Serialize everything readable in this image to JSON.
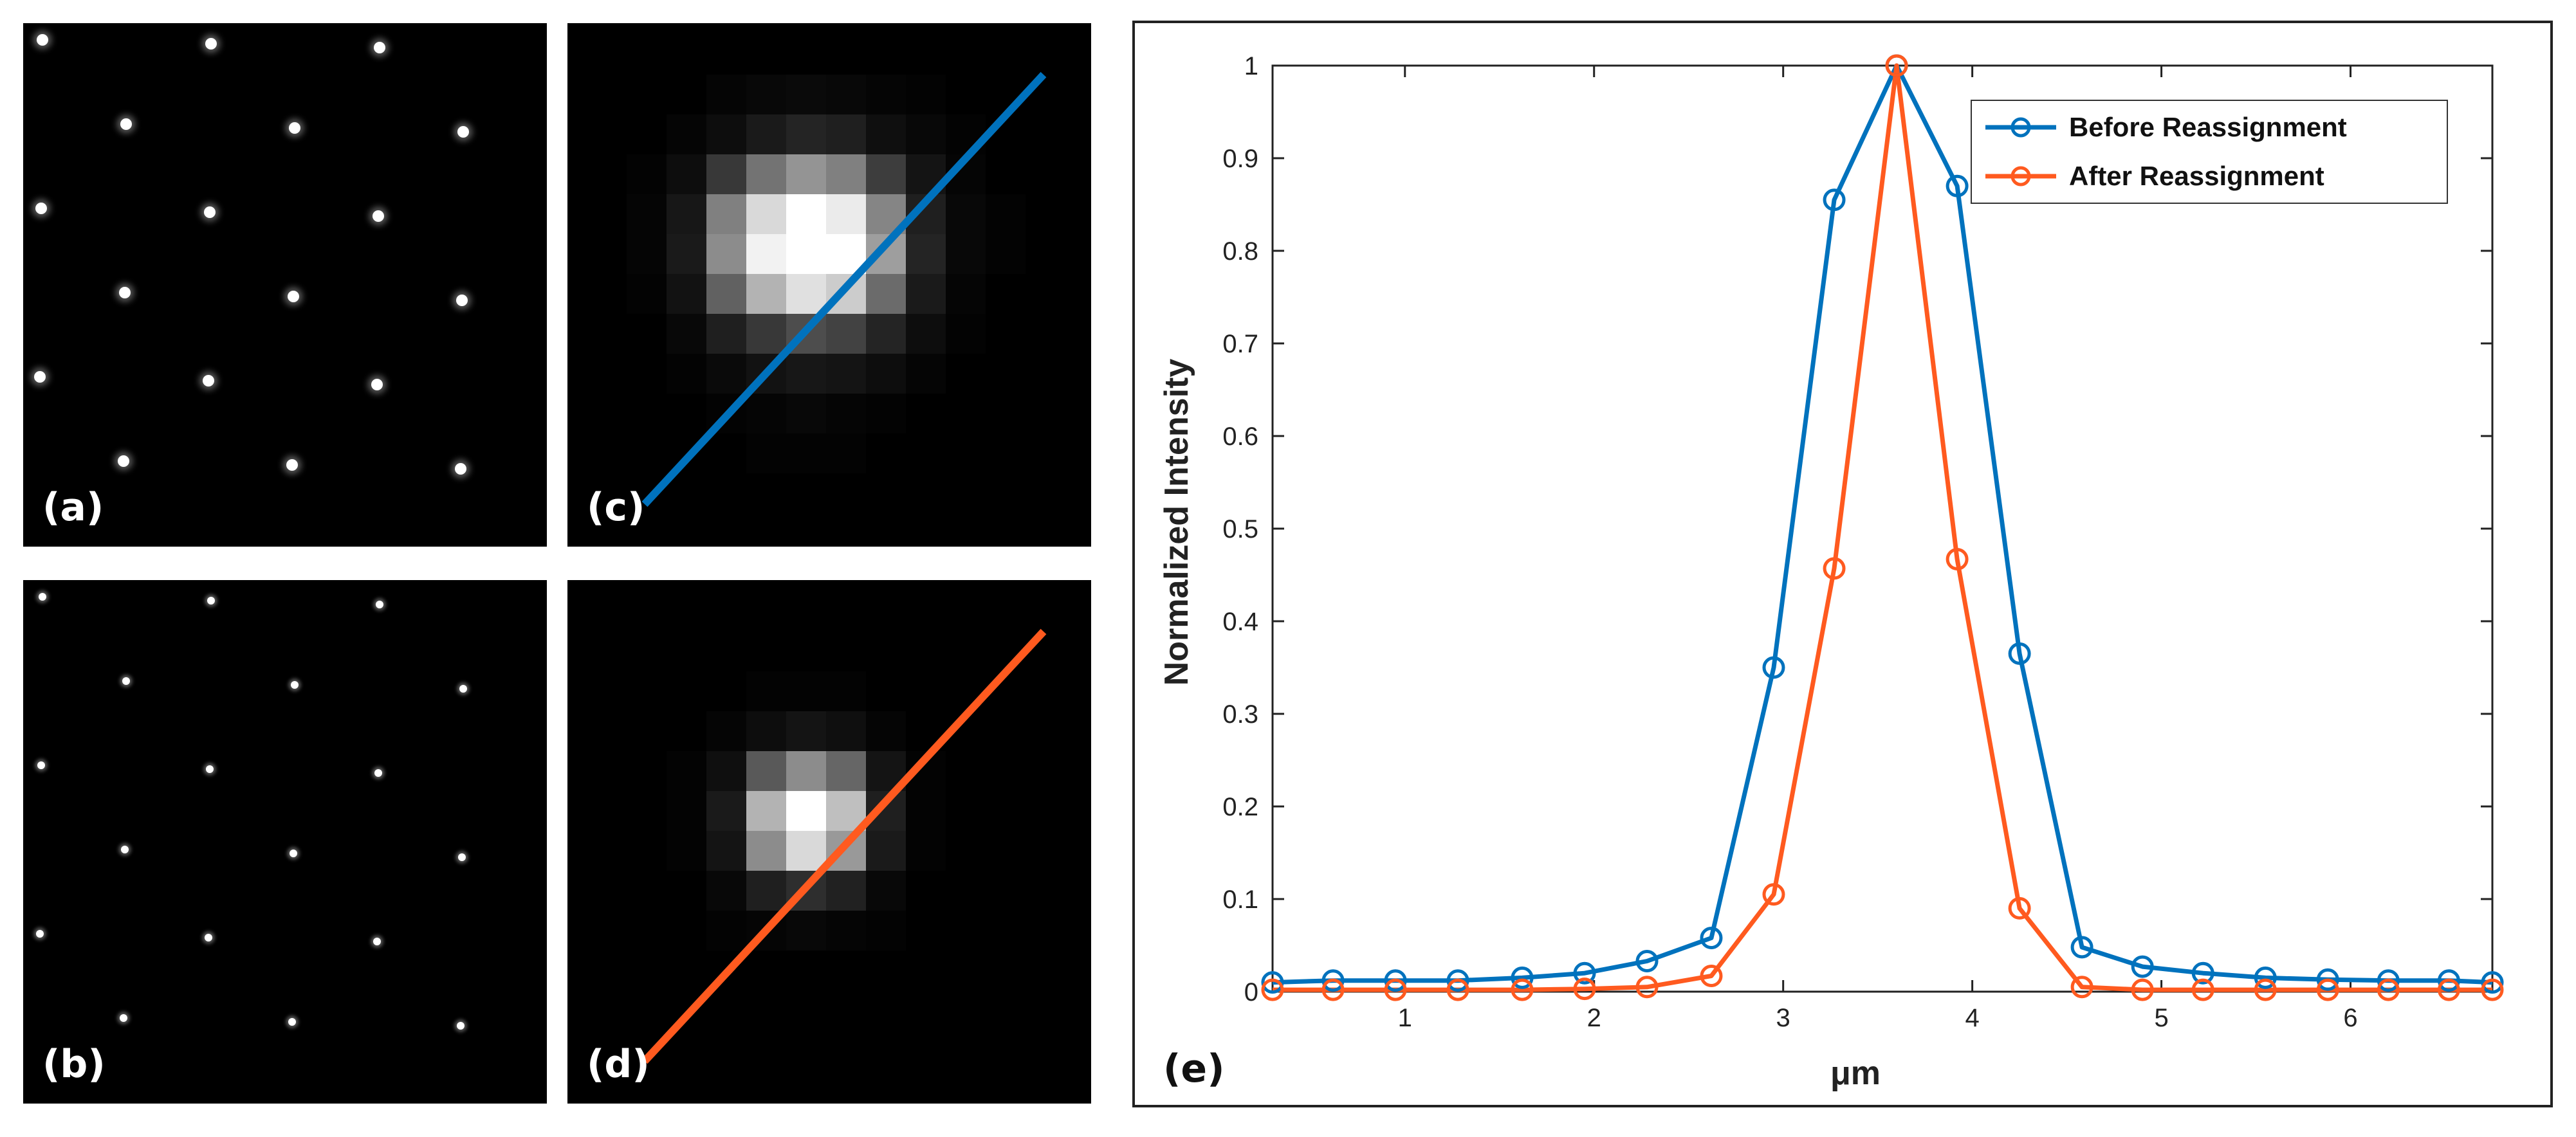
{
  "panels": {
    "a": {
      "label": "(a)"
    },
    "b": {
      "label": "(b)"
    },
    "c": {
      "label": "(c)"
    },
    "d": {
      "label": "(d)"
    },
    "e": {
      "label": "(e)"
    }
  },
  "colors": {
    "before": "#0072BD",
    "after": "#FF5A1F",
    "axis": "#222222",
    "background": "#000000"
  },
  "spot_grid": {
    "rows": 6,
    "cols": 3,
    "row_offsets": [
      0,
      1,
      0,
      1,
      0,
      1
    ]
  },
  "psf_before": [
    [
      0.0,
      0.0,
      0.02,
      0.03,
      0.04,
      0.03,
      0.02,
      0.01,
      0.0,
      0.0
    ],
    [
      0.0,
      0.02,
      0.05,
      0.1,
      0.14,
      0.12,
      0.06,
      0.03,
      0.01,
      0.0
    ],
    [
      0.01,
      0.05,
      0.22,
      0.45,
      0.58,
      0.5,
      0.24,
      0.08,
      0.02,
      0.0
    ],
    [
      0.02,
      0.09,
      0.5,
      0.85,
      1.0,
      0.92,
      0.52,
      0.12,
      0.03,
      0.01
    ],
    [
      0.02,
      0.1,
      0.55,
      0.95,
      1.0,
      1.0,
      0.62,
      0.14,
      0.03,
      0.01
    ],
    [
      0.01,
      0.07,
      0.38,
      0.7,
      0.88,
      0.8,
      0.42,
      0.1,
      0.02,
      0.0
    ],
    [
      0.0,
      0.03,
      0.12,
      0.22,
      0.3,
      0.26,
      0.14,
      0.05,
      0.01,
      0.0
    ],
    [
      0.0,
      0.01,
      0.04,
      0.07,
      0.09,
      0.08,
      0.05,
      0.02,
      0.0,
      0.0
    ],
    [
      0.0,
      0.0,
      0.01,
      0.02,
      0.03,
      0.02,
      0.01,
      0.0,
      0.0,
      0.0
    ],
    [
      0.0,
      0.0,
      0.0,
      0.01,
      0.01,
      0.01,
      0.0,
      0.0,
      0.0,
      0.0
    ]
  ],
  "psf_after": [
    [
      0.0,
      0.0,
      0.0,
      0.0,
      0.0,
      0.0,
      0.0,
      0.0,
      0.0,
      0.0
    ],
    [
      0.0,
      0.0,
      0.0,
      0.01,
      0.01,
      0.01,
      0.0,
      0.0,
      0.0,
      0.0
    ],
    [
      0.0,
      0.0,
      0.02,
      0.05,
      0.08,
      0.06,
      0.02,
      0.0,
      0.0,
      0.0
    ],
    [
      0.0,
      0.01,
      0.06,
      0.35,
      0.55,
      0.4,
      0.08,
      0.01,
      0.0,
      0.0
    ],
    [
      0.0,
      0.01,
      0.1,
      0.7,
      1.0,
      0.75,
      0.12,
      0.01,
      0.0,
      0.0
    ],
    [
      0.0,
      0.01,
      0.08,
      0.55,
      0.85,
      0.6,
      0.1,
      0.01,
      0.0,
      0.0
    ],
    [
      0.0,
      0.0,
      0.03,
      0.12,
      0.18,
      0.13,
      0.03,
      0.0,
      0.0,
      0.0
    ],
    [
      0.0,
      0.0,
      0.01,
      0.02,
      0.03,
      0.02,
      0.01,
      0.0,
      0.0,
      0.0
    ],
    [
      0.0,
      0.0,
      0.0,
      0.0,
      0.0,
      0.0,
      0.0,
      0.0,
      0.0,
      0.0
    ],
    [
      0.0,
      0.0,
      0.0,
      0.0,
      0.0,
      0.0,
      0.0,
      0.0,
      0.0,
      0.0
    ]
  ],
  "chart_data": {
    "type": "line",
    "title": "",
    "xlabel": "μm",
    "ylabel": "Normalized Intensity",
    "xlim": [
      0.3,
      6.75
    ],
    "ylim": [
      0,
      1
    ],
    "xticks": [
      1,
      2,
      3,
      4,
      5,
      6
    ],
    "yticks": [
      0,
      0.1,
      0.2,
      0.3,
      0.4,
      0.5,
      0.6,
      0.7,
      0.8,
      0.9,
      1
    ],
    "ytick_labels": [
      "0",
      "0.1",
      "0.2",
      "0.3",
      "0.4",
      "0.5",
      "0.6",
      "0.7",
      "0.8",
      "0.9",
      "1"
    ],
    "legend_position": "top-right",
    "x": [
      0.3,
      0.62,
      0.95,
      1.28,
      1.62,
      1.95,
      2.28,
      2.62,
      2.95,
      3.27,
      3.6,
      3.92,
      4.25,
      4.58,
      4.9,
      5.22,
      5.55,
      5.88,
      6.2,
      6.52,
      6.75
    ],
    "series": [
      {
        "name": "Before Reassignment",
        "values": [
          0.01,
          0.012,
          0.012,
          0.012,
          0.015,
          0.02,
          0.033,
          0.058,
          0.35,
          0.855,
          1.0,
          0.87,
          0.365,
          0.048,
          0.027,
          0.02,
          0.015,
          0.013,
          0.012,
          0.012,
          0.01
        ]
      },
      {
        "name": "After Reassignment",
        "values": [
          0.002,
          0.002,
          0.002,
          0.002,
          0.002,
          0.003,
          0.005,
          0.017,
          0.105,
          0.457,
          1.0,
          0.467,
          0.09,
          0.005,
          0.002,
          0.002,
          0.002,
          0.002,
          0.002,
          0.002,
          0.002
        ]
      }
    ]
  }
}
